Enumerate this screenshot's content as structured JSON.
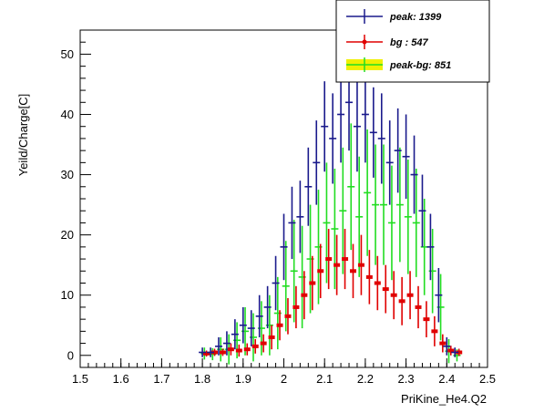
{
  "chart_data": {
    "type": "scatter",
    "title": "",
    "xlabel": "PriKine_He4.Q2",
    "ylabel": "Yeild/Charge[C]",
    "xlim": [
      1.5,
      2.5
    ],
    "ylim": [
      -2,
      54
    ],
    "xticks": [
      1.5,
      1.6,
      1.7,
      1.8,
      1.9,
      2.0,
      2.1,
      2.2,
      2.3,
      2.4,
      2.5
    ],
    "xtick_labels": [
      "1.5",
      "1.6",
      "1.7",
      "1.8",
      "1.9",
      "2",
      "2.1",
      "2.2",
      "2.3",
      "2.4",
      "2.5"
    ],
    "yticks": [
      0,
      10,
      20,
      30,
      40,
      50
    ],
    "ytick_labels": [
      "0",
      "10",
      "20",
      "30",
      "40",
      "50"
    ],
    "grid": false,
    "legend_position": "top-right",
    "series": [
      {
        "name": "peak: 1399",
        "color": "#1a1a8c",
        "marker": "cross",
        "x": [
          1.8,
          1.82,
          1.84,
          1.86,
          1.88,
          1.9,
          1.92,
          1.94,
          1.96,
          1.98,
          2.0,
          2.02,
          2.04,
          2.06,
          2.08,
          2.1,
          2.12,
          2.14,
          2.16,
          2.18,
          2.2,
          2.22,
          2.24,
          2.26,
          2.28,
          2.3,
          2.32,
          2.34,
          2.36,
          2.38,
          2.4,
          2.42
        ],
        "y": [
          0.5,
          0.5,
          1.5,
          2.0,
          3.5,
          5.0,
          4.5,
          6.5,
          8.0,
          12.0,
          18.0,
          22.0,
          23.0,
          28.0,
          32.0,
          38.0,
          36.0,
          40.0,
          42.0,
          38.0,
          40.0,
          37.0,
          36.0,
          32.0,
          34.0,
          33.0,
          30.0,
          24.0,
          18.0,
          10.0,
          1.5,
          0.5
        ],
        "yerr": [
          0.8,
          0.8,
          1.5,
          2.0,
          2.5,
          3.0,
          3.0,
          3.5,
          3.5,
          4.5,
          5.5,
          6.0,
          6.0,
          6.5,
          7.0,
          7.5,
          7.5,
          8.0,
          8.0,
          7.5,
          8.0,
          7.5,
          7.5,
          7.0,
          7.0,
          7.0,
          6.5,
          6.0,
          5.5,
          4.5,
          1.5,
          0.8
        ]
      },
      {
        "name": "bg  : 547",
        "color": "#e00000",
        "marker": "dot",
        "x": [
          1.81,
          1.83,
          1.85,
          1.87,
          1.89,
          1.91,
          1.93,
          1.95,
          1.97,
          1.99,
          2.01,
          2.03,
          2.05,
          2.07,
          2.09,
          2.11,
          2.13,
          2.15,
          2.17,
          2.19,
          2.21,
          2.23,
          2.25,
          2.27,
          2.29,
          2.31,
          2.33,
          2.35,
          2.37,
          2.39,
          2.41,
          2.43
        ],
        "y": [
          0.3,
          0.5,
          0.5,
          1.0,
          0.8,
          1.0,
          1.5,
          2.0,
          3.0,
          5.0,
          6.5,
          8.0,
          10.0,
          12.0,
          14.0,
          16.0,
          15.0,
          16.0,
          14.0,
          15.0,
          13.0,
          12.0,
          11.0,
          10.0,
          9.0,
          10.0,
          8.0,
          6.0,
          4.0,
          2.0,
          0.8,
          0.5
        ],
        "yerr": [
          0.5,
          0.6,
          0.6,
          1.0,
          1.0,
          1.0,
          1.2,
          1.5,
          2.0,
          2.5,
          3.0,
          3.5,
          4.0,
          4.5,
          4.5,
          5.0,
          5.0,
          5.0,
          4.5,
          5.0,
          4.5,
          4.5,
          4.0,
          4.0,
          4.0,
          4.0,
          3.5,
          3.0,
          2.5,
          1.5,
          0.8,
          0.6
        ]
      },
      {
        "name": "peak-bg: 851",
        "color": "#22dd22",
        "marker": "cross",
        "x": [
          1.805,
          1.825,
          1.845,
          1.865,
          1.885,
          1.905,
          1.925,
          1.945,
          1.965,
          1.985,
          2.005,
          2.025,
          2.045,
          2.065,
          2.085,
          2.105,
          2.125,
          2.145,
          2.165,
          2.185,
          2.205,
          2.225,
          2.245,
          2.265,
          2.285,
          2.305,
          2.325,
          2.345,
          2.365,
          2.385,
          2.405,
          2.425
        ],
        "y": [
          0.3,
          0.2,
          1.0,
          1.0,
          2.5,
          4.0,
          3.0,
          4.5,
          5.0,
          7.0,
          11.5,
          14.0,
          13.0,
          16.0,
          18.0,
          22.0,
          21.0,
          24.0,
          28.0,
          23.0,
          27.0,
          25.0,
          25.0,
          22.0,
          25.0,
          23.0,
          22.0,
          18.0,
          14.0,
          8.0,
          0.7,
          0.0
        ],
        "yerr": [
          1.0,
          1.0,
          2.0,
          2.5,
          3.0,
          4.0,
          4.0,
          4.5,
          5.0,
          6.0,
          7.5,
          8.5,
          8.5,
          9.0,
          9.5,
          10.0,
          10.0,
          10.5,
          10.5,
          10.0,
          10.5,
          10.0,
          10.0,
          9.5,
          9.5,
          9.5,
          9.0,
          8.0,
          7.0,
          5.5,
          2.0,
          1.0
        ]
      }
    ]
  }
}
